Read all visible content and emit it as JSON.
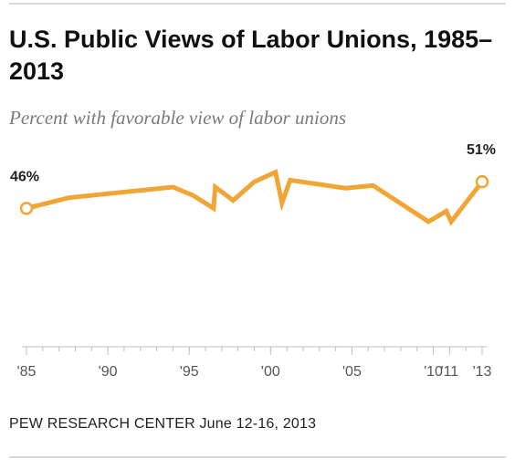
{
  "header": {
    "title": "U.S. Public Views of Labor Unions, 1985–2013",
    "subtitle": "Percent with favorable view of labor unions"
  },
  "footer": {
    "source": "PEW RESEARCH CENTER June 12-16, 2013"
  },
  "colors": {
    "line": "#f0a535",
    "axis": "#bfbfbf",
    "rule": "#d9d9d9"
  },
  "chart_data": {
    "type": "line",
    "title": "U.S. Public Views of Labor Unions, 1985–2013",
    "subtitle": "Percent with favorable view of labor unions",
    "xlabel": "",
    "ylabel": "",
    "ylim": [
      20,
      56
    ],
    "xlim": [
      1985,
      2013
    ],
    "grid": false,
    "x_ticks": [
      1985,
      1990,
      1995,
      2000,
      2005,
      2010,
      2011,
      2013
    ],
    "x_tick_labels": [
      "'85",
      "'90",
      "'95",
      "'00",
      "'05",
      "'10",
      "'11",
      "'13"
    ],
    "series": [
      {
        "x": [
          1985,
          1987.6,
          1994,
          1995.2,
          1996.5,
          1996.6,
          1997.7,
          1999,
          2000.3,
          2000.7,
          2001.2,
          2004.6,
          2006.3,
          2009.7,
          2010.8,
          2011.1,
          2013
        ],
        "values": [
          46,
          48,
          50,
          48.5,
          46,
          50,
          47.5,
          51,
          52.8,
          47,
          51.3,
          49.8,
          50.3,
          43.5,
          45.5,
          43.5,
          51
        ]
      }
    ],
    "data_labels": [
      {
        "x": 1985,
        "y": 46,
        "text": "46%"
      },
      {
        "x": 2013,
        "y": 51,
        "text": "51%"
      }
    ]
  }
}
